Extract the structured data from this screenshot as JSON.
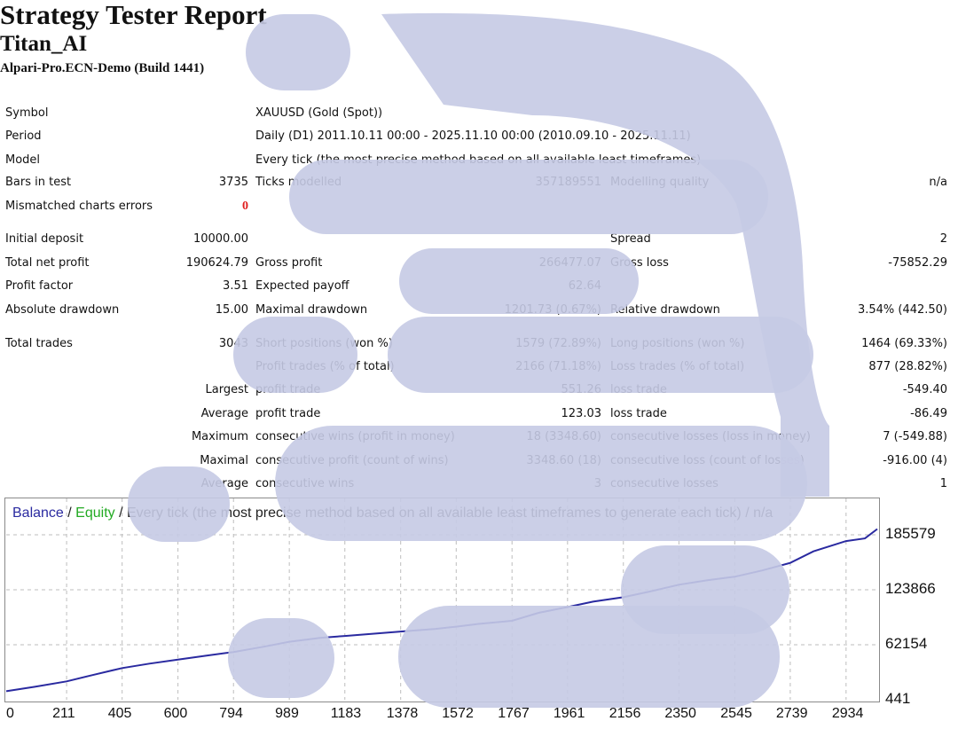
{
  "header": {
    "title": "Strategy Tester Report",
    "expert": "Titan_AI",
    "server": "Alpari-Pro.ECN-Demo (Build 1441)"
  },
  "info": {
    "symbol_label": "Symbol",
    "symbol_value": "XAUUSD (Gold (Spot))",
    "period_label": "Period",
    "period_value": "Daily (D1) 2011.10.11 00:00 - 2025.11.10 00:00 (2010.09.10 - 2025.11.11)",
    "model_label": "Model",
    "model_value": "Every tick (the most precise method based on all available least timeframes)",
    "bars_label": "Bars in test",
    "bars_value": "3735",
    "ticks_label": "Ticks modelled",
    "ticks_value": "357189551",
    "quality_label": "Modelling quality",
    "quality_value": "n/a",
    "mismatch_label": "Mismatched charts errors",
    "mismatch_value": "0"
  },
  "results": {
    "initial_deposit_label": "Initial deposit",
    "initial_deposit_value": "10000.00",
    "spread_label": "Spread",
    "spread_value": "2",
    "net_profit_label": "Total net profit",
    "net_profit_value": "190624.79",
    "gross_profit_label": "Gross profit",
    "gross_profit_value": "266477.07",
    "gross_loss_label": "Gross loss",
    "gross_loss_value": "-75852.29",
    "profit_factor_label": "Profit factor",
    "profit_factor_value": "3.51",
    "expected_payoff_label": "Expected payoff",
    "expected_payoff_value": "62.64",
    "abs_dd_label": "Absolute drawdown",
    "abs_dd_value": "15.00",
    "max_dd_label": "Maximal drawdown",
    "max_dd_value": "1201.73 (0.67%)",
    "rel_dd_label": "Relative drawdown",
    "rel_dd_value": "3.54% (442.50)",
    "total_trades_label": "Total trades",
    "total_trades_value": "3043",
    "short_label": "Short positions (won %)",
    "short_value": "1579 (72.89%)",
    "long_label": "Long positions (won %)",
    "long_value": "1464 (69.33%)",
    "profit_trades_label": "Profit trades (% of total)",
    "profit_trades_value": "2166 (71.18%)",
    "loss_trades_label": "Loss trades (% of total)",
    "loss_trades_value": "877 (28.82%)",
    "largest_label": "Largest",
    "largest_profit_label": "profit trade",
    "largest_profit_value": "551.26",
    "largest_loss_label": "loss trade",
    "largest_loss_value": "-549.40",
    "average_label": "Average",
    "average_profit_label": "profit trade",
    "average_profit_value": "123.03",
    "average_loss_label": "loss trade",
    "average_loss_value": "-86.49",
    "maximum_label": "Maximum",
    "max_wins_label": "consecutive wins (profit in money)",
    "max_wins_value": "18 (3348.60)",
    "max_losses_label": "consecutive losses (loss in money)",
    "max_losses_value": "7 (-549.88)",
    "maximal_label": "Maximal",
    "maximal_profit_label": "consecutive profit (count of wins)",
    "maximal_profit_value": "3348.60 (18)",
    "maximal_loss_label": "consecutive loss (count of losses)",
    "maximal_loss_value": "-916.00 (4)",
    "avg_consec_label": "Average",
    "avg_wins_label": "consecutive wins",
    "avg_wins_value": "3",
    "avg_losses_label": "consecutive losses",
    "avg_losses_value": "1"
  },
  "chart_legend": {
    "balance": "Balance",
    "sep1": " / ",
    "equity": "Equity",
    "rest": " / Every tick (the most precise method based on all available least timeframes to generate each tick) / n/a"
  },
  "colors": {
    "balance_line": "#2a2aa0",
    "equity_text": "#22aa22",
    "overlay": "#c5cae4",
    "mismatch_zero": "#e02020"
  },
  "chart_data": {
    "type": "line",
    "title": "",
    "xlabel": "",
    "ylabel": "",
    "x_ticks": [
      "0",
      "211",
      "405",
      "600",
      "794",
      "989",
      "1183",
      "1378",
      "1572",
      "1767",
      "1961",
      "2156",
      "2350",
      "2545",
      "2739",
      "2934"
    ],
    "y_ticks": [
      "185579",
      "123866",
      "62154",
      "441"
    ],
    "xlim": [
      0,
      3043
    ],
    "ylim": [
      441,
      200000
    ],
    "grid": true,
    "series": [
      {
        "name": "Balance",
        "color": "#2a2aa0",
        "x": [
          0,
          100,
          211,
          300,
          405,
          500,
          600,
          700,
          794,
          900,
          989,
          1100,
          1183,
          1300,
          1378,
          1500,
          1572,
          1650,
          1767,
          1860,
          1961,
          2050,
          2156,
          2250,
          2350,
          2450,
          2545,
          2640,
          2739,
          2820,
          2934,
          3000,
          3043
        ],
        "y": [
          10000,
          15000,
          21000,
          28000,
          36000,
          41000,
          45500,
          50000,
          54000,
          60000,
          65500,
          70000,
          72000,
          75000,
          77000,
          80000,
          82500,
          85500,
          89000,
          98000,
          104500,
          110500,
          115500,
          122000,
          129500,
          134500,
          138500,
          145500,
          154000,
          167000,
          178500,
          181500,
          192000
        ]
      }
    ]
  }
}
